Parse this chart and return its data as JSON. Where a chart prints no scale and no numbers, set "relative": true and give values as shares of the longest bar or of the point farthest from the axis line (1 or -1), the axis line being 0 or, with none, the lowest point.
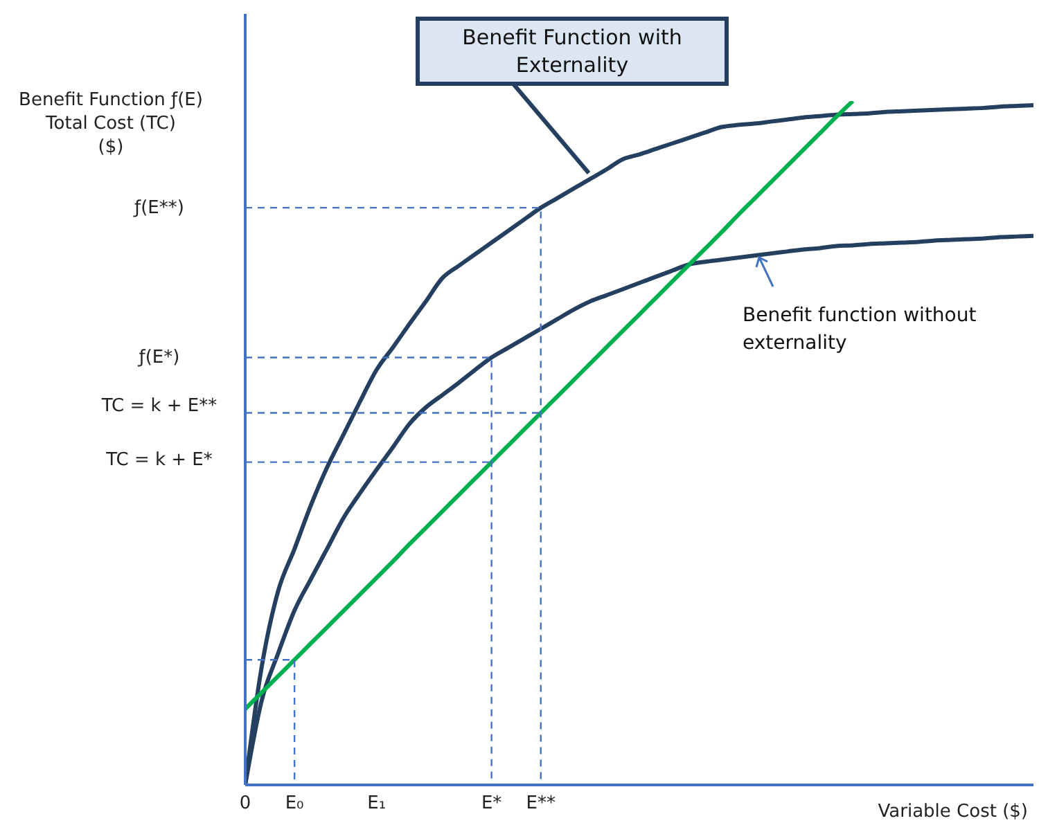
{
  "chart_data": {
    "type": "line",
    "relative": true,
    "marker": "none",
    "xlabel": "Variable Cost ($)",
    "ylabel": "Benefit Function ƒ(E)\nTotal Cost (TC)\n($)",
    "categories": [
      "0",
      null,
      null,
      "E₀",
      null,
      null,
      null,
      null,
      "E₁",
      null,
      null,
      null,
      null,
      null,
      null,
      "E*",
      null,
      null,
      "E**",
      null,
      null,
      null,
      null,
      null,
      null,
      null,
      null,
      null,
      null,
      null,
      null,
      null,
      null,
      null,
      null,
      null,
      null,
      null,
      null,
      null,
      null,
      null,
      null,
      null,
      null,
      null,
      null,
      null,
      null
    ],
    "annotations": [
      "Benefit Function with Externality",
      "Benefit function without externality",
      "ƒ(E**)",
      "ƒ(E*)",
      "TC = k + E**",
      "TC = k + E*"
    ],
    "series": [
      {
        "color": "#243f60",
        "line_style": "solid",
        "values": [
          0,
          0.172,
          0.283,
          0.345,
          0.409,
          0.465,
          0.513,
          0.561,
          0.607,
          0.64,
          0.674,
          0.707,
          0.741,
          0.759,
          0.776,
          0.793,
          0.81,
          0.827,
          0.844,
          0.858,
          0.872,
          0.886,
          0.9,
          0.915,
          0.922,
          0.93,
          0.938,
          0.946,
          0.954,
          0.962,
          0.965,
          0.967,
          0.97,
          0.973,
          0.976,
          0.978,
          0.98,
          0.981,
          0.982,
          0.984,
          0.985,
          0.986,
          0.987,
          0.988,
          0.989,
          0.99,
          0.992,
          0.993,
          0.994
        ]
      },
      {
        "color": "#243f60",
        "line_style": "solid",
        "values": [
          0,
          0.123,
          0.192,
          0.255,
          0.301,
          0.346,
          0.391,
          0.427,
          0.461,
          0.494,
          0.528,
          0.552,
          0.57,
          0.588,
          0.607,
          0.625,
          0.639,
          0.653,
          0.667,
          0.681,
          0.695,
          0.707,
          0.716,
          0.725,
          0.734,
          0.743,
          0.752,
          0.761,
          0.765,
          0.768,
          0.771,
          0.774,
          0.777,
          0.78,
          0.783,
          0.785,
          0.788,
          0.789,
          0.791,
          0.792,
          0.793,
          0.794,
          0.796,
          0.797,
          0.798,
          0.799,
          0.801,
          0.802,
          0.803
        ]
      },
      {
        "color": "#00b050",
        "line_style": "solid",
        "values": [
          0.111,
          0.135,
          0.159,
          0.183,
          0.207,
          0.231,
          0.255,
          0.279,
          0.303,
          0.327,
          0.352,
          0.376,
          0.4,
          0.424,
          0.448,
          0.472,
          0.496,
          0.52,
          0.544,
          0.568,
          0.592,
          0.616,
          0.64,
          0.664,
          0.688,
          0.712,
          0.736,
          0.76,
          0.784,
          0.808,
          0.833,
          0.857,
          0.881,
          0.905,
          0.929,
          0.953,
          0.977,
          1.0,
          null,
          null,
          null,
          null,
          null,
          null,
          null,
          null,
          null,
          null,
          null
        ]
      },
      {
        "color": "#4472c4",
        "line_style": "dashed",
        "x": [
          "0",
          "E**",
          "E**"
        ],
        "values": [
          0.844,
          0.844,
          0
        ]
      },
      {
        "color": "#4472c4",
        "line_style": "dashed",
        "x": [
          "0",
          "E*",
          "E*"
        ],
        "values": [
          0.625,
          0.625,
          0
        ]
      },
      {
        "color": "#4472c4",
        "line_style": "dashed",
        "x": [
          "0",
          "E**"
        ],
        "values": [
          0.544,
          0.544
        ]
      },
      {
        "color": "#4472c4",
        "line_style": "dashed",
        "x": [
          "0",
          "E*"
        ],
        "values": [
          0.472,
          0.472
        ]
      },
      {
        "color": "#4472c4",
        "line_style": "dashed",
        "x": [
          "0",
          "E₀",
          "E₀"
        ],
        "values": [
          0.183,
          0.183,
          0
        ]
      }
    ]
  }
}
